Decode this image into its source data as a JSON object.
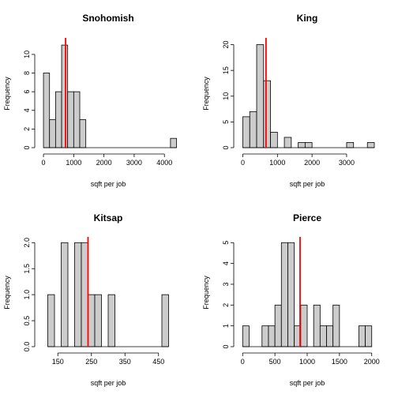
{
  "chart_data": [
    {
      "type": "histogram",
      "title": "Snohomish",
      "xlabel": "sqft per job",
      "ylabel": "Frequency",
      "bin_width": 200,
      "bin_start": 0,
      "counts": [
        8,
        3,
        6,
        11,
        6,
        6,
        3,
        0,
        0,
        0,
        0,
        0,
        0,
        0,
        0,
        0,
        0,
        0,
        0,
        0,
        0,
        1
      ],
      "xlim": [
        -80,
        4360
      ],
      "ylim": [
        0,
        11.6
      ],
      "xticks": [
        0,
        1000,
        2000,
        3000,
        4000
      ],
      "yticks": [
        0,
        2,
        4,
        6,
        8,
        10
      ],
      "vline": 730,
      "vline_color": "#ff0000"
    },
    {
      "type": "histogram",
      "title": "King",
      "xlabel": "sqft per job",
      "ylabel": "Frequency",
      "bin_width": 200,
      "bin_start": 0,
      "counts": [
        6,
        7,
        20,
        13,
        3,
        0,
        2,
        0,
        1,
        1,
        0,
        0,
        0,
        0,
        0,
        1,
        0,
        0,
        1
      ],
      "xlim": [
        -80,
        3800
      ],
      "ylim": [
        0,
        21
      ],
      "xticks": [
        0,
        1000,
        2000,
        3000
      ],
      "yticks": [
        0,
        5,
        10,
        15,
        20
      ],
      "vline": 670,
      "vline_color": "#ff0000"
    },
    {
      "type": "histogram",
      "title": "Kitsap",
      "xlabel": "sqft per job",
      "ylabel": "Frequency",
      "bin_width": 20,
      "bin_start": 120,
      "counts": [
        1,
        0,
        2,
        0,
        2,
        2,
        1,
        1,
        0,
        1,
        0,
        0,
        0,
        0,
        0,
        0,
        0,
        1
      ],
      "xlim": [
        100,
        500
      ],
      "ylim": [
        0,
        2.08
      ],
      "xticks": [
        150,
        250,
        350,
        450
      ],
      "yticks": [
        0.0,
        0.5,
        1.0,
        1.5,
        2.0
      ],
      "vline": 240,
      "vline_color": "#ff0000"
    },
    {
      "type": "histogram",
      "title": "Pierce",
      "xlabel": "sqft per job",
      "ylabel": "Frequency",
      "bin_width": 100,
      "bin_start": 0,
      "counts": [
        1,
        0,
        0,
        1,
        1,
        2,
        5,
        5,
        1,
        2,
        0,
        2,
        1,
        1,
        2,
        0,
        0,
        0,
        1,
        1
      ],
      "xlim": [
        -40,
        2040
      ],
      "ylim": [
        0,
        5.2
      ],
      "xticks": [
        0,
        500,
        1000,
        1500,
        2000
      ],
      "yticks": [
        0,
        1,
        2,
        3,
        4,
        5
      ],
      "vline": 890,
      "vline_color": "#ff0000"
    }
  ]
}
